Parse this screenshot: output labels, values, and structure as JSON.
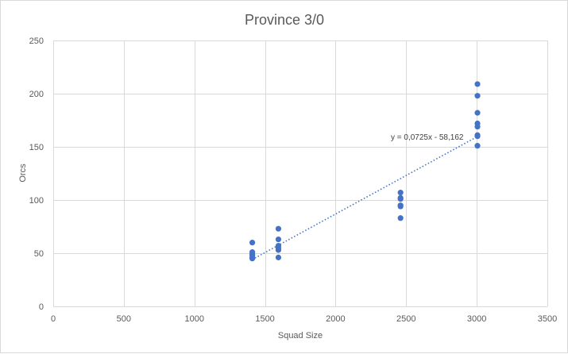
{
  "chart_data": {
    "type": "scatter",
    "title": "Province 3/0",
    "xlabel": "Squad Size",
    "ylabel": "Orcs",
    "xlim": [
      0,
      3500
    ],
    "ylim": [
      0,
      250
    ],
    "x_ticks": [
      "0",
      "500",
      "1000",
      "1500",
      "2000",
      "2500",
      "3000",
      "3500"
    ],
    "y_ticks": [
      "0",
      "50",
      "100",
      "150",
      "200",
      "250"
    ],
    "grid": true,
    "legend": "none",
    "series": [
      {
        "color": "#4472c4",
        "points": [
          [
            1410,
            60
          ],
          [
            1410,
            51
          ],
          [
            1410,
            49
          ],
          [
            1410,
            48
          ],
          [
            1410,
            46
          ],
          [
            1410,
            45
          ],
          [
            1595,
            73
          ],
          [
            1595,
            63
          ],
          [
            1595,
            57
          ],
          [
            1595,
            55
          ],
          [
            1595,
            53
          ],
          [
            1595,
            46
          ],
          [
            2460,
            107
          ],
          [
            2460,
            102
          ],
          [
            2460,
            101
          ],
          [
            2460,
            95
          ],
          [
            2460,
            94
          ],
          [
            2460,
            83
          ],
          [
            3005,
            209
          ],
          [
            3005,
            198
          ],
          [
            3005,
            182
          ],
          [
            3005,
            172
          ],
          [
            3005,
            169
          ],
          [
            3005,
            161
          ],
          [
            3005,
            160
          ],
          [
            3005,
            151
          ]
        ]
      }
    ],
    "trendline": {
      "type": "linear",
      "slope": 0.0725,
      "intercept": -58.162,
      "x_range": [
        1410,
        3005
      ],
      "label": "y = 0,0725x - 58,162"
    }
  }
}
